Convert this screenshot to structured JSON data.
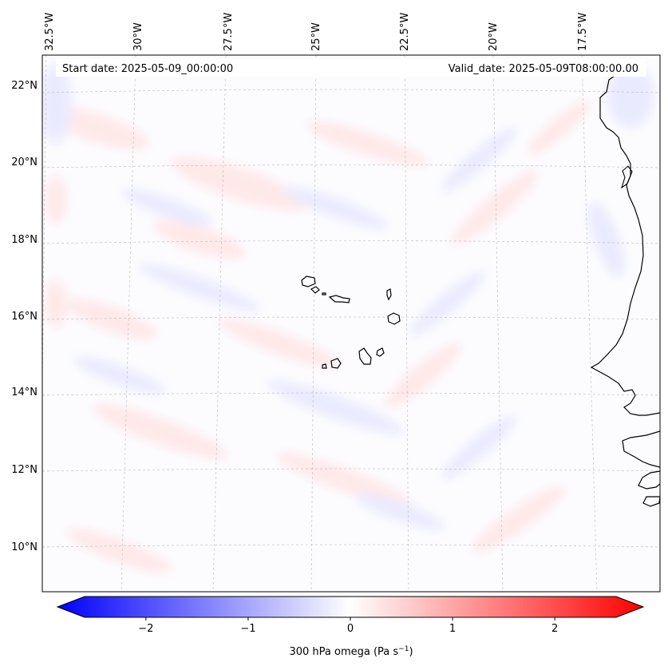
{
  "map": {
    "start_date": "Start date: 2025-05-09_00:00:00",
    "valid_date": "Valid_date: 2025-05-09T08:00:00.00",
    "longitude_labels": [
      "32.5°W",
      "30°W",
      "27.5°W",
      "25°W",
      "22.5°W",
      "20°W",
      "17.5°W"
    ],
    "latitude_labels": [
      "22°N",
      "20°N",
      "18°N",
      "16°N",
      "14°N",
      "12°N",
      "10°N"
    ],
    "extent": {
      "lon_range": [
        -32.6,
        -16.5
      ],
      "lat_range": [
        8.9,
        22.8
      ]
    },
    "field": {
      "variable": "omega",
      "level_hpa": 300,
      "range": [
        -2.6,
        2.6
      ]
    },
    "features": [
      "coastline",
      "islands",
      "gridlines"
    ]
  },
  "colorbar": {
    "label": "300 hPa omega (Pa s",
    "label_superscript": "−1",
    "label_suffix": ")",
    "ticks": [
      -2,
      -1,
      0,
      1,
      2
    ],
    "tick_labels": [
      "−2",
      "−1",
      "0",
      "1",
      "2"
    ],
    "vmin": -2.6,
    "vmax": 2.6,
    "colors": {
      "negative": "#0000ff",
      "neutral": "#ffffff",
      "positive": "#ff0000"
    }
  }
}
